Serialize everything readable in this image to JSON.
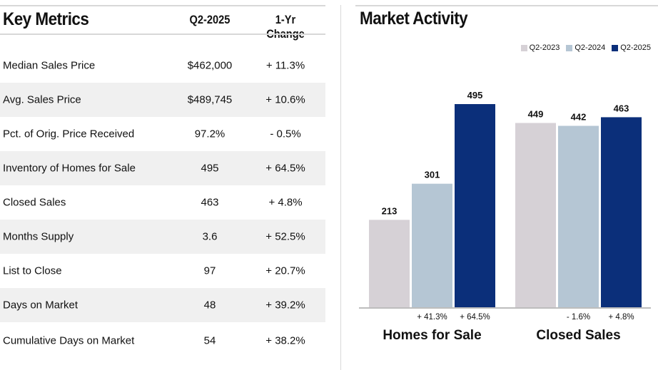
{
  "metrics": {
    "title": "Key Metrics",
    "col_value": "Q2-2025",
    "col_change": "1-Yr Change",
    "rows": [
      {
        "label": "Median Sales Price",
        "value": "$462,000",
        "change": "+ 11.3%"
      },
      {
        "label": "Avg. Sales Price",
        "value": "$489,745",
        "change": "+ 10.6%"
      },
      {
        "label": "Pct. of Orig. Price Received",
        "value": "97.2%",
        "change": "- 0.5%"
      },
      {
        "label": "Inventory of Homes for Sale",
        "value": "495",
        "change": "+ 64.5%"
      },
      {
        "label": "Closed Sales",
        "value": "463",
        "change": "+ 4.8%"
      },
      {
        "label": "Months Supply",
        "value": "3.6",
        "change": "+ 52.5%"
      },
      {
        "label": "List to Close",
        "value": "97",
        "change": "+ 20.7%"
      },
      {
        "label": "Days on Market",
        "value": "48",
        "change": "+ 39.2%"
      },
      {
        "label": "Cumulative Days on Market",
        "value": "54",
        "change": "+ 38.2%"
      }
    ]
  },
  "activity": {
    "title": "Market Activity"
  },
  "chart_data": {
    "type": "bar",
    "title": "Market Activity",
    "categories": [
      "Homes for Sale",
      "Closed Sales"
    ],
    "series": [
      {
        "name": "Q2-2023",
        "color": "#d6d1d6",
        "values": [
          213,
          449
        ],
        "changes": [
          "",
          ""
        ]
      },
      {
        "name": "Q2-2024",
        "color": "#b5c6d4",
        "values": [
          301,
          442
        ],
        "changes": [
          "+ 41.3%",
          "- 1.6%"
        ]
      },
      {
        "name": "Q2-2025",
        "color": "#0b2f7a",
        "values": [
          495,
          463
        ],
        "changes": [
          "+ 64.5%",
          "+ 4.8%"
        ]
      }
    ],
    "ylim": [
      0,
      495
    ],
    "legend": "top-right",
    "grid": false
  }
}
